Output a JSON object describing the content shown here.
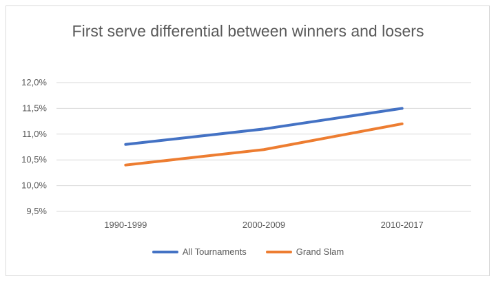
{
  "chart_data": {
    "type": "line",
    "title": "First serve differential between winners and losers",
    "categories": [
      "1990-1999",
      "2000-2009",
      "2010-2017"
    ],
    "series": [
      {
        "name": "All Tournaments",
        "color": "#4472c4",
        "values": [
          10.8,
          11.1,
          11.5
        ]
      },
      {
        "name": "Grand Slam",
        "color": "#ed7d31",
        "values": [
          10.4,
          10.7,
          11.2
        ]
      }
    ],
    "ylim": [
      9.5,
      12.0
    ],
    "yticks": [
      "12,0%",
      "11,5%",
      "11,0%",
      "10,5%",
      "10,0%",
      "9,5%"
    ],
    "ytick_values": [
      12.0,
      11.5,
      11.0,
      10.5,
      10.0,
      9.5
    ],
    "grid": true,
    "legend_position": "bottom"
  }
}
